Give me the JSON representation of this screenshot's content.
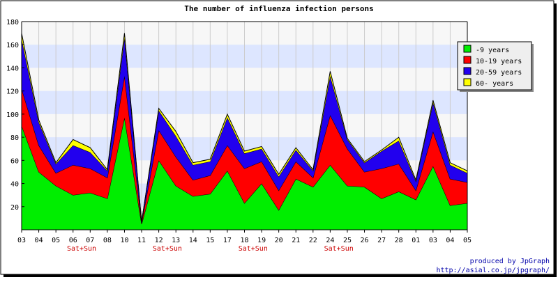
{
  "chart_data": {
    "type": "area",
    "stacked": true,
    "title": "The number of influenza infection persons",
    "xlabel": "",
    "ylabel": "",
    "ylim": [
      0,
      180
    ],
    "yticks": [
      20,
      40,
      60,
      80,
      100,
      120,
      140,
      160,
      180
    ],
    "grid": {
      "horizontal_bands": true,
      "vertical_lines": true
    },
    "legend_position": "top-right",
    "x": [
      "03",
      "04",
      "05",
      "06",
      "07",
      "08",
      "10",
      "11",
      "12",
      "13",
      "14",
      "15",
      "17",
      "18",
      "19",
      "20",
      "21",
      "22",
      "24",
      "25",
      "26",
      "27",
      "28",
      "01",
      "03",
      "04",
      "05"
    ],
    "sub_labels": [
      {
        "label": "Sat+Sun",
        "category_index": 3.5
      },
      {
        "label": "Sat+Sun",
        "category_index": 8.5
      },
      {
        "label": "Sat+Sun",
        "category_index": 13.5
      },
      {
        "label": "Sat+Sun",
        "category_index": 18.5
      }
    ],
    "series": [
      {
        "name": "-9 years",
        "color": "#00ee00",
        "values": [
          90,
          50,
          38,
          30,
          32,
          27,
          97,
          5,
          60,
          38,
          29,
          31,
          51,
          23,
          40,
          17,
          44,
          37,
          56,
          38,
          37,
          27,
          33,
          26,
          55,
          21,
          23
        ]
      },
      {
        "name": "10-19 years",
        "color": "#ff0000",
        "values": [
          32,
          23,
          11,
          26,
          21,
          18,
          36,
          1,
          26,
          25,
          14,
          16,
          22,
          30,
          19,
          17,
          15,
          8,
          43,
          32,
          13,
          26,
          24,
          8,
          30,
          23,
          18
        ]
      },
      {
        "name": "20-59 years",
        "color": "#2200ee",
        "values": [
          43,
          20,
          8,
          17,
          14,
          6,
          33,
          1,
          17,
          18,
          13,
          12,
          24,
          13,
          11,
          12,
          10,
          6,
          34,
          8,
          8,
          15,
          20,
          8,
          25,
          12,
          8
        ]
      },
      {
        "name": "60- years",
        "color": "#ffff00",
        "values": [
          5,
          2,
          1,
          5,
          4,
          1,
          4,
          0,
          2,
          4,
          2,
          2,
          3,
          2,
          2,
          2,
          2,
          1,
          4,
          1,
          1,
          1,
          3,
          1,
          2,
          2,
          2
        ]
      }
    ],
    "footer": [
      "produced by JpGraph",
      "http://asial.co.jp/jpgraph/"
    ]
  }
}
